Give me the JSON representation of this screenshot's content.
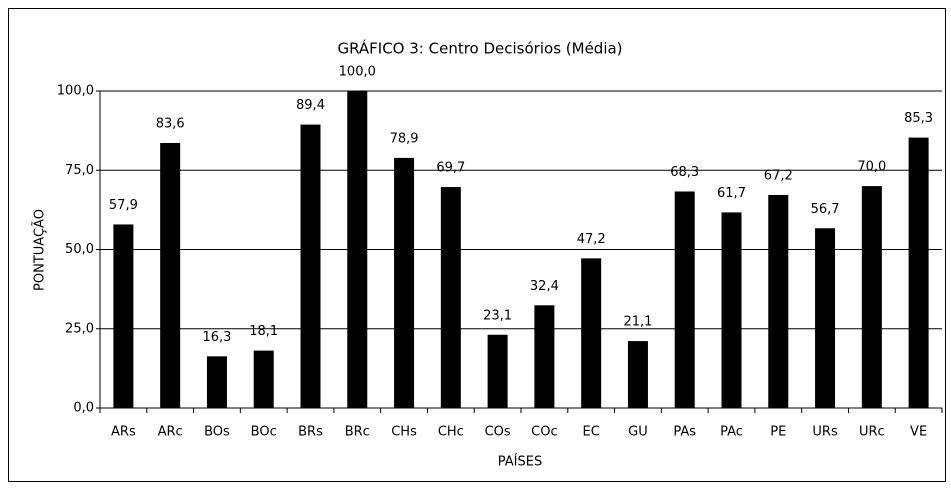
{
  "chart_data": {
    "type": "bar",
    "title": "GRÁFICO 3: Centro Decisórios (Média)",
    "x_label": "PAÍSES",
    "y_label": "PONTUAÇÃO",
    "categories": [
      "ARs",
      "ARc",
      "BOs",
      "BOc",
      "BRs",
      "BRc",
      "CHs",
      "CHc",
      "COs",
      "COc",
      "EC",
      "GU",
      "PAs",
      "PAc",
      "PE",
      "URs",
      "URc",
      "VE"
    ],
    "values": [
      57.9,
      83.6,
      16.3,
      18.1,
      89.4,
      100.0,
      78.9,
      69.7,
      23.1,
      32.4,
      47.2,
      21.1,
      68.3,
      61.7,
      67.2,
      56.7,
      70.0,
      85.3
    ],
    "value_labels": [
      "57,9",
      "83,6",
      "16,3",
      "18,1",
      "89,4",
      "100,0",
      "78,9",
      "69,7",
      "23,1",
      "32,4",
      "47,2",
      "21,1",
      "68,3",
      "61,7",
      "67,2",
      "56,7",
      "70,0",
      "85,3"
    ],
    "color": "#000000",
    "ylim": [
      0,
      100
    ],
    "yticks": [
      {
        "value": 0,
        "label": "0,0"
      },
      {
        "value": 25,
        "label": "25,0"
      },
      {
        "value": 50,
        "label": "50,0"
      },
      {
        "value": 75,
        "label": "75,0"
      },
      {
        "value": 100,
        "label": "100,0"
      }
    ],
    "grid": true
  }
}
